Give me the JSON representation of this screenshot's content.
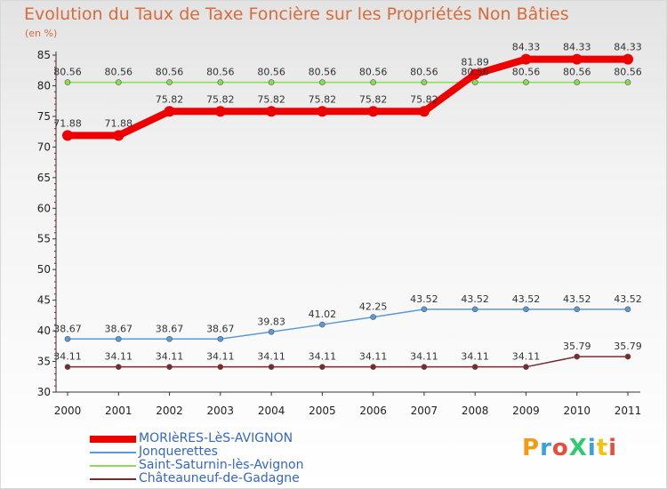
{
  "title": "Evolution du Taux de Taxe Foncière sur les Propriétés Non Bâties",
  "subtitle": "(en %)",
  "logo_text": "ProXiti",
  "chart_data": {
    "type": "line",
    "title": "Evolution du Taux de Taxe Foncière sur les Propriétés Non Bâties",
    "ylabel": "(en %)",
    "xlabel": "",
    "x": [
      "2000",
      "2001",
      "2002",
      "2003",
      "2004",
      "2005",
      "2006",
      "2007",
      "2008",
      "2009",
      "2010",
      "2011"
    ],
    "ylim": [
      30,
      85
    ],
    "yticks": [
      30,
      35,
      40,
      45,
      50,
      55,
      60,
      65,
      70,
      75,
      80,
      85
    ],
    "grid": false,
    "legend_position": "bottom-left",
    "series": [
      {
        "name": "MORIèRES-LèS-AVIGNON",
        "color": "#ee0000",
        "style": "thick",
        "values": [
          71.88,
          71.88,
          75.82,
          75.82,
          75.82,
          75.82,
          75.82,
          75.82,
          81.89,
          84.33,
          84.33,
          84.33
        ],
        "labels": [
          "71.88",
          "71.88",
          "75.82",
          "75.82",
          "75.82",
          "75.82",
          "75.82",
          "75.82",
          "81.89",
          "84.33",
          "84.33",
          "84.33"
        ]
      },
      {
        "name": "Jonquerettes",
        "color": "#5b9bd5",
        "style": "thin",
        "values": [
          38.67,
          38.67,
          38.67,
          38.67,
          39.83,
          41.02,
          42.25,
          43.52,
          43.52,
          43.52,
          43.52,
          43.52
        ],
        "labels": [
          "38.67",
          "38.67",
          "38.67",
          "38.67",
          "39.83",
          "41.02",
          "42.25",
          "43.52",
          "43.52",
          "43.52",
          "43.52",
          "43.52"
        ]
      },
      {
        "name": "Saint-Saturnin-lès-Avignon",
        "color": "#88dd55",
        "style": "thin",
        "values": [
          80.56,
          80.56,
          80.56,
          80.56,
          80.56,
          80.56,
          80.56,
          80.56,
          80.56,
          80.56,
          80.56,
          80.56
        ],
        "labels": [
          "80.56",
          "80.56",
          "80.56",
          "80.56",
          "80.56",
          "80.56",
          "80.56",
          "80.56",
          "80.56",
          "80.56",
          "80.56",
          "80.56"
        ]
      },
      {
        "name": "Châteauneuf-de-Gadagne",
        "color": "#7a2a2a",
        "style": "thin",
        "values": [
          34.11,
          34.11,
          34.11,
          34.11,
          34.11,
          34.11,
          34.11,
          34.11,
          34.11,
          34.11,
          35.79,
          35.79
        ],
        "labels": [
          "34.11",
          "34.11",
          "34.11",
          "34.11",
          "34.11",
          "34.11",
          "34.11",
          "34.11",
          "34.11",
          "34.11",
          "35.79",
          "35.79"
        ]
      }
    ]
  },
  "logo_colors": [
    "#f39c12",
    "#3aa0e0",
    "#e74c3c",
    "#2ecc71",
    "#3aa0e0",
    "#f1c40f",
    "#e74c3c"
  ]
}
